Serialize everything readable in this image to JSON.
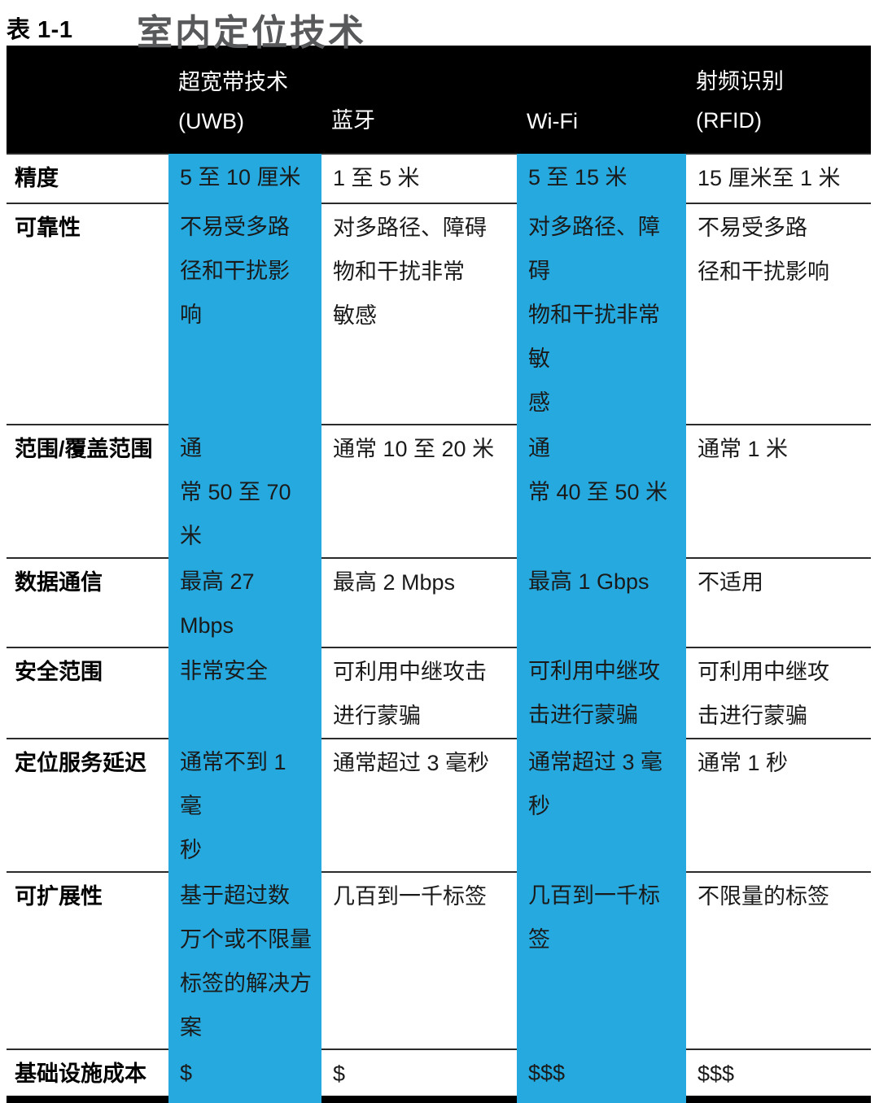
{
  "colors": {
    "accent": "#25a9de",
    "header_bg": "#000000",
    "header_text": "#ffffff",
    "title_gray": "#58595b",
    "body_text": "#1a1a1a"
  },
  "title": {
    "label": "表 1-1",
    "heading": "室内定位技术"
  },
  "table": {
    "columns": [
      {
        "key": "criteria",
        "label": "",
        "highlight": false
      },
      {
        "key": "uwb",
        "label": "超宽带技术\n(UWB)",
        "highlight": true
      },
      {
        "key": "bluetooth",
        "label": "蓝牙",
        "highlight": false
      },
      {
        "key": "wifi",
        "label": "Wi-Fi",
        "highlight": true
      },
      {
        "key": "rfid",
        "label": "射频识别\n(RFID)",
        "highlight": false
      }
    ],
    "rows": [
      {
        "label": "精度",
        "uwb": "5 至 10 厘米",
        "bluetooth": "1 至 5 米",
        "wifi": "5 至 15 米",
        "rfid": "15 厘米至 1 米"
      },
      {
        "label": "可靠性",
        "uwb": "不易受多路\n径和干扰影\n响",
        "bluetooth": "对多路径、障碍\n物和干扰非常\n敏感",
        "wifi": "对多路径、障碍\n物和干扰非常敏\n感",
        "rfid": "不易受多路\n径和干扰影响"
      },
      {
        "label": "范围/覆盖范围",
        "uwb": "通\n常 50 至 70 米",
        "bluetooth": "通常 10 至 20 米",
        "wifi": "通\n常 40 至 50 米",
        "rfid": "通常 1 米"
      },
      {
        "label": "数据通信",
        "uwb": "最高 27 Mbps",
        "bluetooth": "最高 2 Mbps",
        "wifi": "最高 1 Gbps",
        "rfid": "不适用"
      },
      {
        "label": "安全范围",
        "uwb": "非常安全",
        "bluetooth": "可利用中继攻击\n进行蒙骗",
        "wifi": "可利用中继攻\n击进行蒙骗",
        "rfid": "可利用中继攻\n击进行蒙骗"
      },
      {
        "label": "定位服务延迟",
        "uwb": "通常不到 1 毫\n秒",
        "bluetooth": "通常超过 3 毫秒",
        "wifi": "通常超过 3 毫\n秒",
        "rfid": "通常 1 秒"
      },
      {
        "label": "可扩展性",
        "uwb": "基于超过数\n万个或不限量\n标签的解决方\n案",
        "bluetooth": "几百到一千标签",
        "wifi": "几百到一千标签",
        "rfid": "不限量的标签"
      },
      {
        "label": "基础设施成本",
        "uwb": "$",
        "bluetooth": "$",
        "wifi": "$$$",
        "rfid": "$$$"
      }
    ]
  }
}
